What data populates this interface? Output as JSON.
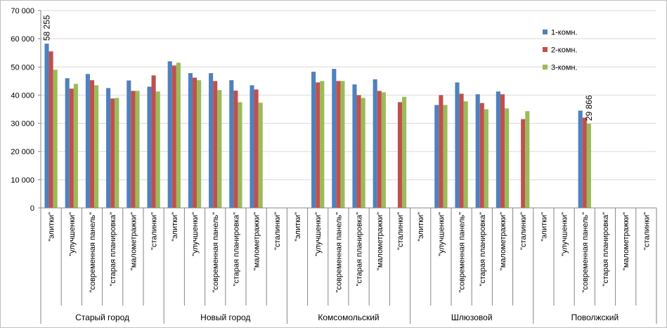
{
  "chart_data": {
    "type": "bar",
    "title": "",
    "xlabel": "",
    "ylabel": "",
    "ylim": [
      0,
      70000
    ],
    "y_ticks": [
      "0",
      "10 000",
      "20 000",
      "30 000",
      "40 000",
      "50 000",
      "60 000",
      "70 000"
    ],
    "grid": true,
    "legend_position": "top-right",
    "groups": [
      {
        "name": "Старый город",
        "categories": [
          "\"элитки\"",
          "\"улучшенки\"",
          "\"современная панель\"",
          "\"старая планировка\"",
          "\"малометражки\"",
          "\"сталинки\""
        ]
      },
      {
        "name": "Новый город",
        "categories": [
          "\"элитки\"",
          "\"улучшенки\"",
          "\"современная панель\"",
          "\"старая планировка\"",
          "\"малометражки\"",
          "\"сталинки\""
        ]
      },
      {
        "name": "Комсомольский",
        "categories": [
          "\"элитки\"",
          "\"улучшенки\"",
          "\"современная панель\"",
          "\"старая планировка\"",
          "\"малометражки\"",
          "\"сталинки\""
        ]
      },
      {
        "name": "Шлюзовой",
        "categories": [
          "\"элитки\"",
          "\"улучшенки\"",
          "\"современная панель\"",
          "\"старая планировка\"",
          "\"малометражки\"",
          "\"сталинки\""
        ]
      },
      {
        "name": "Поволжский",
        "categories": [
          "\"элитки\"",
          "\"улучшенки\"",
          "\"современная панель\"",
          "\"старая планировка\"",
          "\"малометражки\"",
          "\"сталинки\""
        ]
      }
    ],
    "series": [
      {
        "name": "1-комн.",
        "color": "#4f81bd",
        "values": [
          58255,
          46000,
          47500,
          42500,
          45200,
          43000,
          52000,
          47800,
          47800,
          45300,
          43500,
          null,
          null,
          48300,
          49300,
          43800,
          45600,
          null,
          null,
          36500,
          44500,
          40300,
          41300,
          null,
          null,
          null,
          34500,
          null,
          null,
          null
        ]
      },
      {
        "name": "2-комн.",
        "color": "#c0504d",
        "values": [
          55500,
          42300,
          45300,
          38800,
          41500,
          47000,
          50500,
          46200,
          45000,
          41600,
          42000,
          null,
          null,
          44500,
          45000,
          40000,
          41500,
          37500,
          null,
          40000,
          40500,
          37200,
          40300,
          31500,
          null,
          null,
          32000,
          null,
          null,
          null
        ]
      },
      {
        "name": "3-комн.",
        "color": "#9bbb59",
        "values": [
          49000,
          44000,
          43500,
          39000,
          41500,
          41300,
          51500,
          45300,
          41800,
          37500,
          37300,
          null,
          null,
          45000,
          45000,
          39000,
          41000,
          39400,
          null,
          36500,
          37800,
          35000,
          35300,
          34300,
          null,
          null,
          29866,
          null,
          null,
          null
        ]
      }
    ],
    "data_labels": [
      {
        "series": 0,
        "index": 0,
        "text": "58 255"
      },
      {
        "series": 2,
        "index": 26,
        "text": "29 866"
      }
    ]
  }
}
